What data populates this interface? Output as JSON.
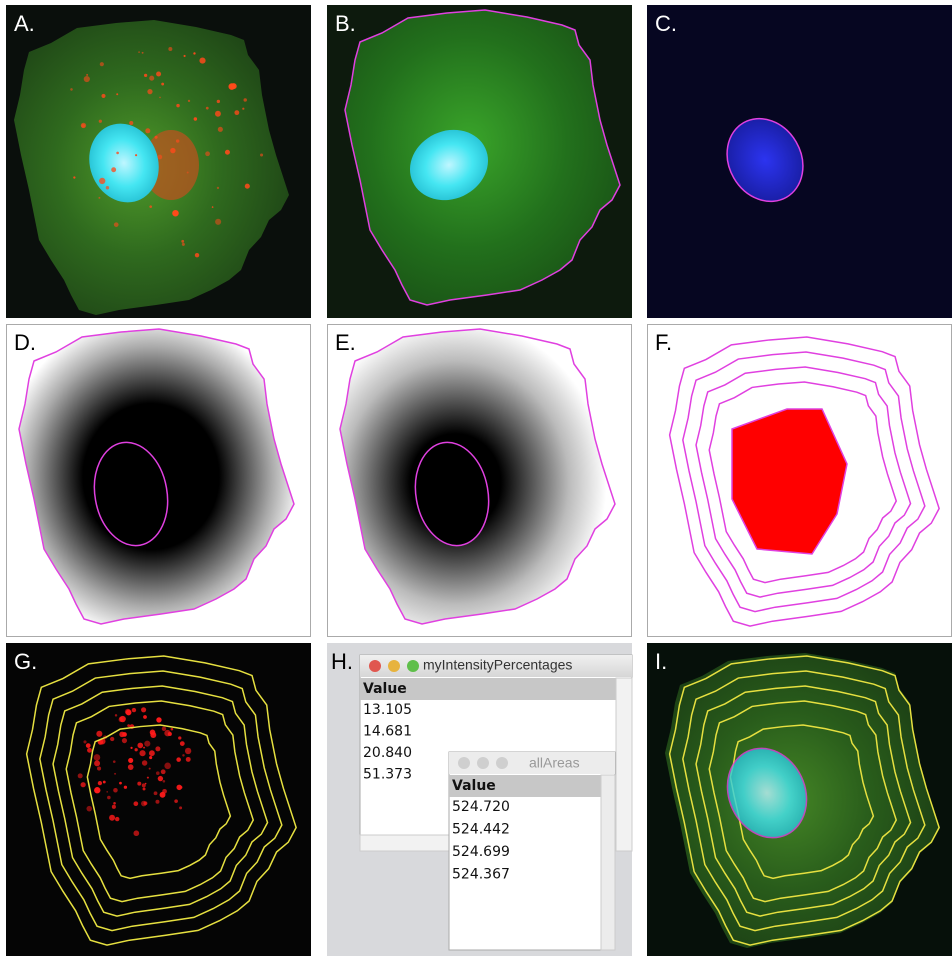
{
  "panels": {
    "labels": [
      "A.",
      "B.",
      "C.",
      "D.",
      "E.",
      "F.",
      "G.",
      "H.",
      "I."
    ]
  },
  "window1": {
    "title": "myIntensityPercentages",
    "header": "Value",
    "rows": [
      "13.105",
      "14.681",
      "20.840",
      "51.373"
    ]
  },
  "window2": {
    "title": "allAreas",
    "header": "Value",
    "rows": [
      "524.720",
      "524.442",
      "524.699",
      "524.367"
    ]
  }
}
